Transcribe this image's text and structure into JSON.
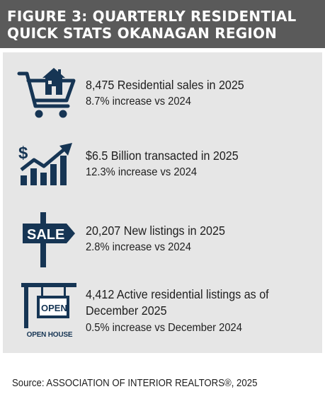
{
  "header": {
    "title_line1": "FIGURE 3: QUARTERLY RESIDENTIAL",
    "title_line2": "QUICK STATS OKANAGAN REGION"
  },
  "stats": [
    {
      "icon": "shopping-cart-house-icon",
      "headline": "8,475 Residential sales in 2025",
      "sub": "8.7% increase vs 2024"
    },
    {
      "icon": "dollar-chart-arrow-icon",
      "headline": "$6.5 Billion transacted in 2025",
      "sub": "12.3% increase vs 2024"
    },
    {
      "icon": "sale-sign-icon",
      "headline": "20,207 New listings in 2025",
      "sub": "2.8% increase vs 2024",
      "icon_text": "SALE"
    },
    {
      "icon": "open-house-sign-icon",
      "headline": "4,412 Active residential listings as of December 2025",
      "sub": "0.5% increase vs December 2024",
      "icon_text": "OPEN",
      "icon_caption": "OPEN HOUSE"
    }
  ],
  "footer": {
    "source": "Source: ASSOCIATION OF INTERIOR REALTORS®, 2025"
  },
  "colors": {
    "header_bg": "#5a5a5a",
    "panel_bg": "#e6e6e6",
    "icon_navy": "#163554",
    "text": "#1e1e1e"
  }
}
